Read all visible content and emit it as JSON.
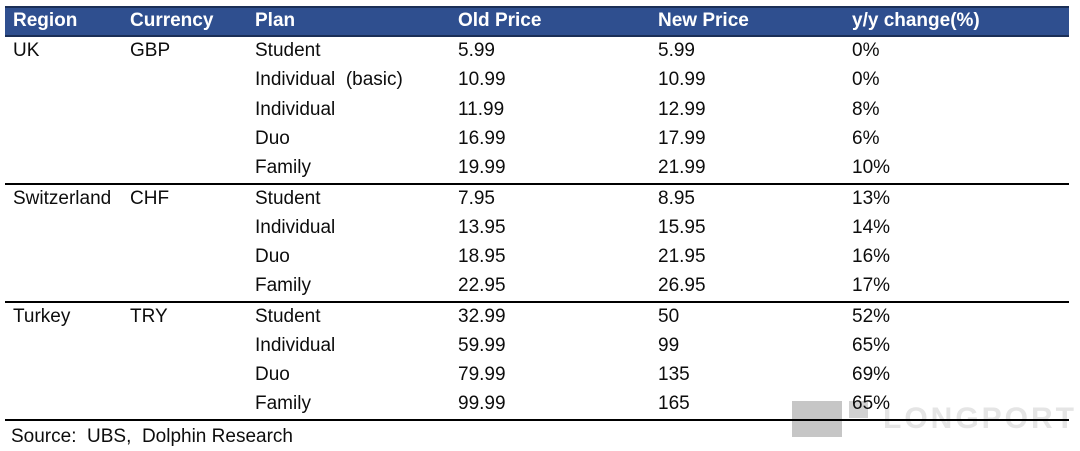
{
  "chart_data": {
    "type": "table",
    "title": "",
    "columns": [
      "Region",
      "Currency",
      "Plan",
      "Old Price",
      "New Price",
      "y/y change(%)"
    ],
    "groups": [
      {
        "region": "UK",
        "currency": "GBP",
        "plans": [
          {
            "plan": "Student",
            "old_price": "5.99",
            "new_price": "5.99",
            "yoy_change": "0%"
          },
          {
            "plan": "Individual  (basic)",
            "old_price": "10.99",
            "new_price": "10.99",
            "yoy_change": "0%"
          },
          {
            "plan": "Individual",
            "old_price": "11.99",
            "new_price": "12.99",
            "yoy_change": "8%"
          },
          {
            "plan": "Duo",
            "old_price": "16.99",
            "new_price": "17.99",
            "yoy_change": "6%"
          },
          {
            "plan": "Family",
            "old_price": "19.99",
            "new_price": "21.99",
            "yoy_change": "10%"
          }
        ]
      },
      {
        "region": "Switzerland",
        "currency": "CHF",
        "plans": [
          {
            "plan": "Student",
            "old_price": "7.95",
            "new_price": "8.95",
            "yoy_change": "13%"
          },
          {
            "plan": "Individual",
            "old_price": "13.95",
            "new_price": "15.95",
            "yoy_change": "14%"
          },
          {
            "plan": "Duo",
            "old_price": "18.95",
            "new_price": "21.95",
            "yoy_change": "16%"
          },
          {
            "plan": "Family",
            "old_price": "22.95",
            "new_price": "26.95",
            "yoy_change": "17%"
          }
        ]
      },
      {
        "region": "Turkey",
        "currency": "TRY",
        "plans": [
          {
            "plan": "Student",
            "old_price": "32.99",
            "new_price": "50",
            "yoy_change": "52%"
          },
          {
            "plan": "Individual",
            "old_price": "59.99",
            "new_price": "99",
            "yoy_change": "65%"
          },
          {
            "plan": "Duo",
            "old_price": "79.99",
            "new_price": "135",
            "yoy_change": "69%"
          },
          {
            "plan": "Family",
            "old_price": "99.99",
            "new_price": "165",
            "yoy_change": "65%"
          }
        ]
      }
    ],
    "layout": {
      "grid": "horizontal-rules-only",
      "legend": "none"
    }
  },
  "source_note": "Source:  UBS,  Dolphin Research",
  "watermark": {
    "text": "LONGPORT"
  },
  "colors": {
    "header_bg": "#2F4F8F",
    "header_text": "#FFFFFF",
    "header_border": "#1B2F57",
    "separator": "#000000",
    "body_text": "#0D0D0D",
    "watermark_text": "#E5E5E5",
    "watermark_logo": "#C6C6C6"
  }
}
